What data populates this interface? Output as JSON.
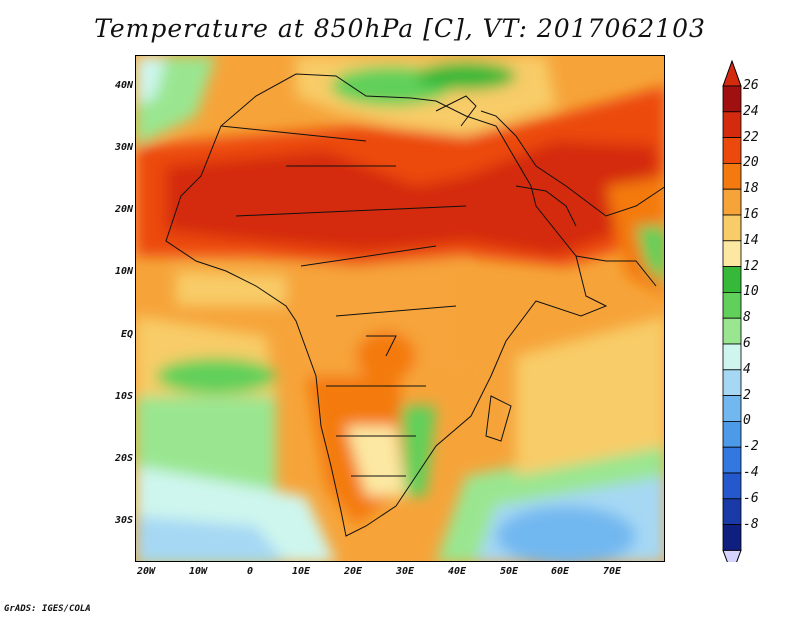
{
  "title": "Temperature at 850hPa [C], VT: 2017062103",
  "credit": "GrADS: IGES/COLA",
  "map": {
    "lat_labels": [
      "40N",
      "30N",
      "20N",
      "10N",
      "EQ",
      "10S",
      "20S",
      "30S"
    ],
    "lon_labels": [
      "20W",
      "10W",
      "0",
      "10E",
      "20E",
      "30E",
      "40E",
      "50E",
      "60E",
      "70E"
    ]
  },
  "colorbar": {
    "labels": [
      "26",
      "24",
      "22",
      "20",
      "18",
      "16",
      "14",
      "12",
      "10",
      "8",
      "6",
      "4",
      "2",
      "0",
      "-2",
      "-4",
      "-6",
      "-8"
    ],
    "colors": [
      "#a01010",
      "#d42a0e",
      "#ec4a0c",
      "#f47a10",
      "#f6a43a",
      "#f8cc68",
      "#fce8a2",
      "#36b838",
      "#60d05a",
      "#9ae690",
      "#cef6ee",
      "#a6d8f4",
      "#72b8f0",
      "#4c9ae8",
      "#3278e0",
      "#2458cc",
      "#1a3aa8",
      "#0e1f80"
    ],
    "over_color": "#d42a0e",
    "under_color": "#d4d4ff"
  }
}
